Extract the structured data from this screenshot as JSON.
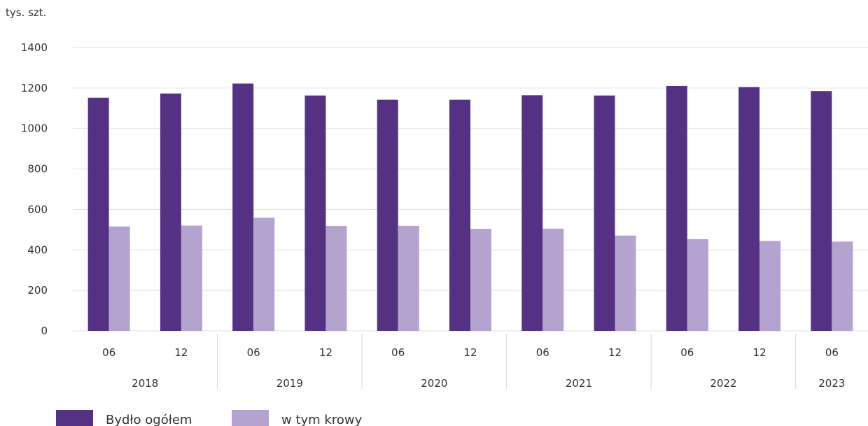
{
  "chart_data": {
    "type": "bar",
    "ylabel": "tys. szt.",
    "ylim": [
      0,
      1400
    ],
    "yticks": [
      0,
      200,
      400,
      600,
      800,
      1000,
      1200,
      1400
    ],
    "grid": true,
    "legend_position": "bottom-left",
    "categories": [
      "06",
      "12",
      "06",
      "12",
      "06",
      "12",
      "06",
      "12",
      "06",
      "12",
      "06"
    ],
    "groups": [
      {
        "label": "2018",
        "span": 2
      },
      {
        "label": "2019",
        "span": 2
      },
      {
        "label": "2020",
        "span": 2
      },
      {
        "label": "2021",
        "span": 2
      },
      {
        "label": "2022",
        "span": 2
      },
      {
        "label": "2023",
        "span": 1
      }
    ],
    "series": [
      {
        "name": "Bydło ogółem",
        "color": "#553184",
        "values": [
          1152,
          1173,
          1222,
          1163,
          1142,
          1142,
          1164,
          1163,
          1210,
          1205,
          1185
        ]
      },
      {
        "name": "w tym krowy",
        "color": "#b4a2cf",
        "values": [
          516,
          520,
          559,
          518,
          519,
          504,
          505,
          471,
          453,
          444,
          441
        ]
      }
    ]
  }
}
